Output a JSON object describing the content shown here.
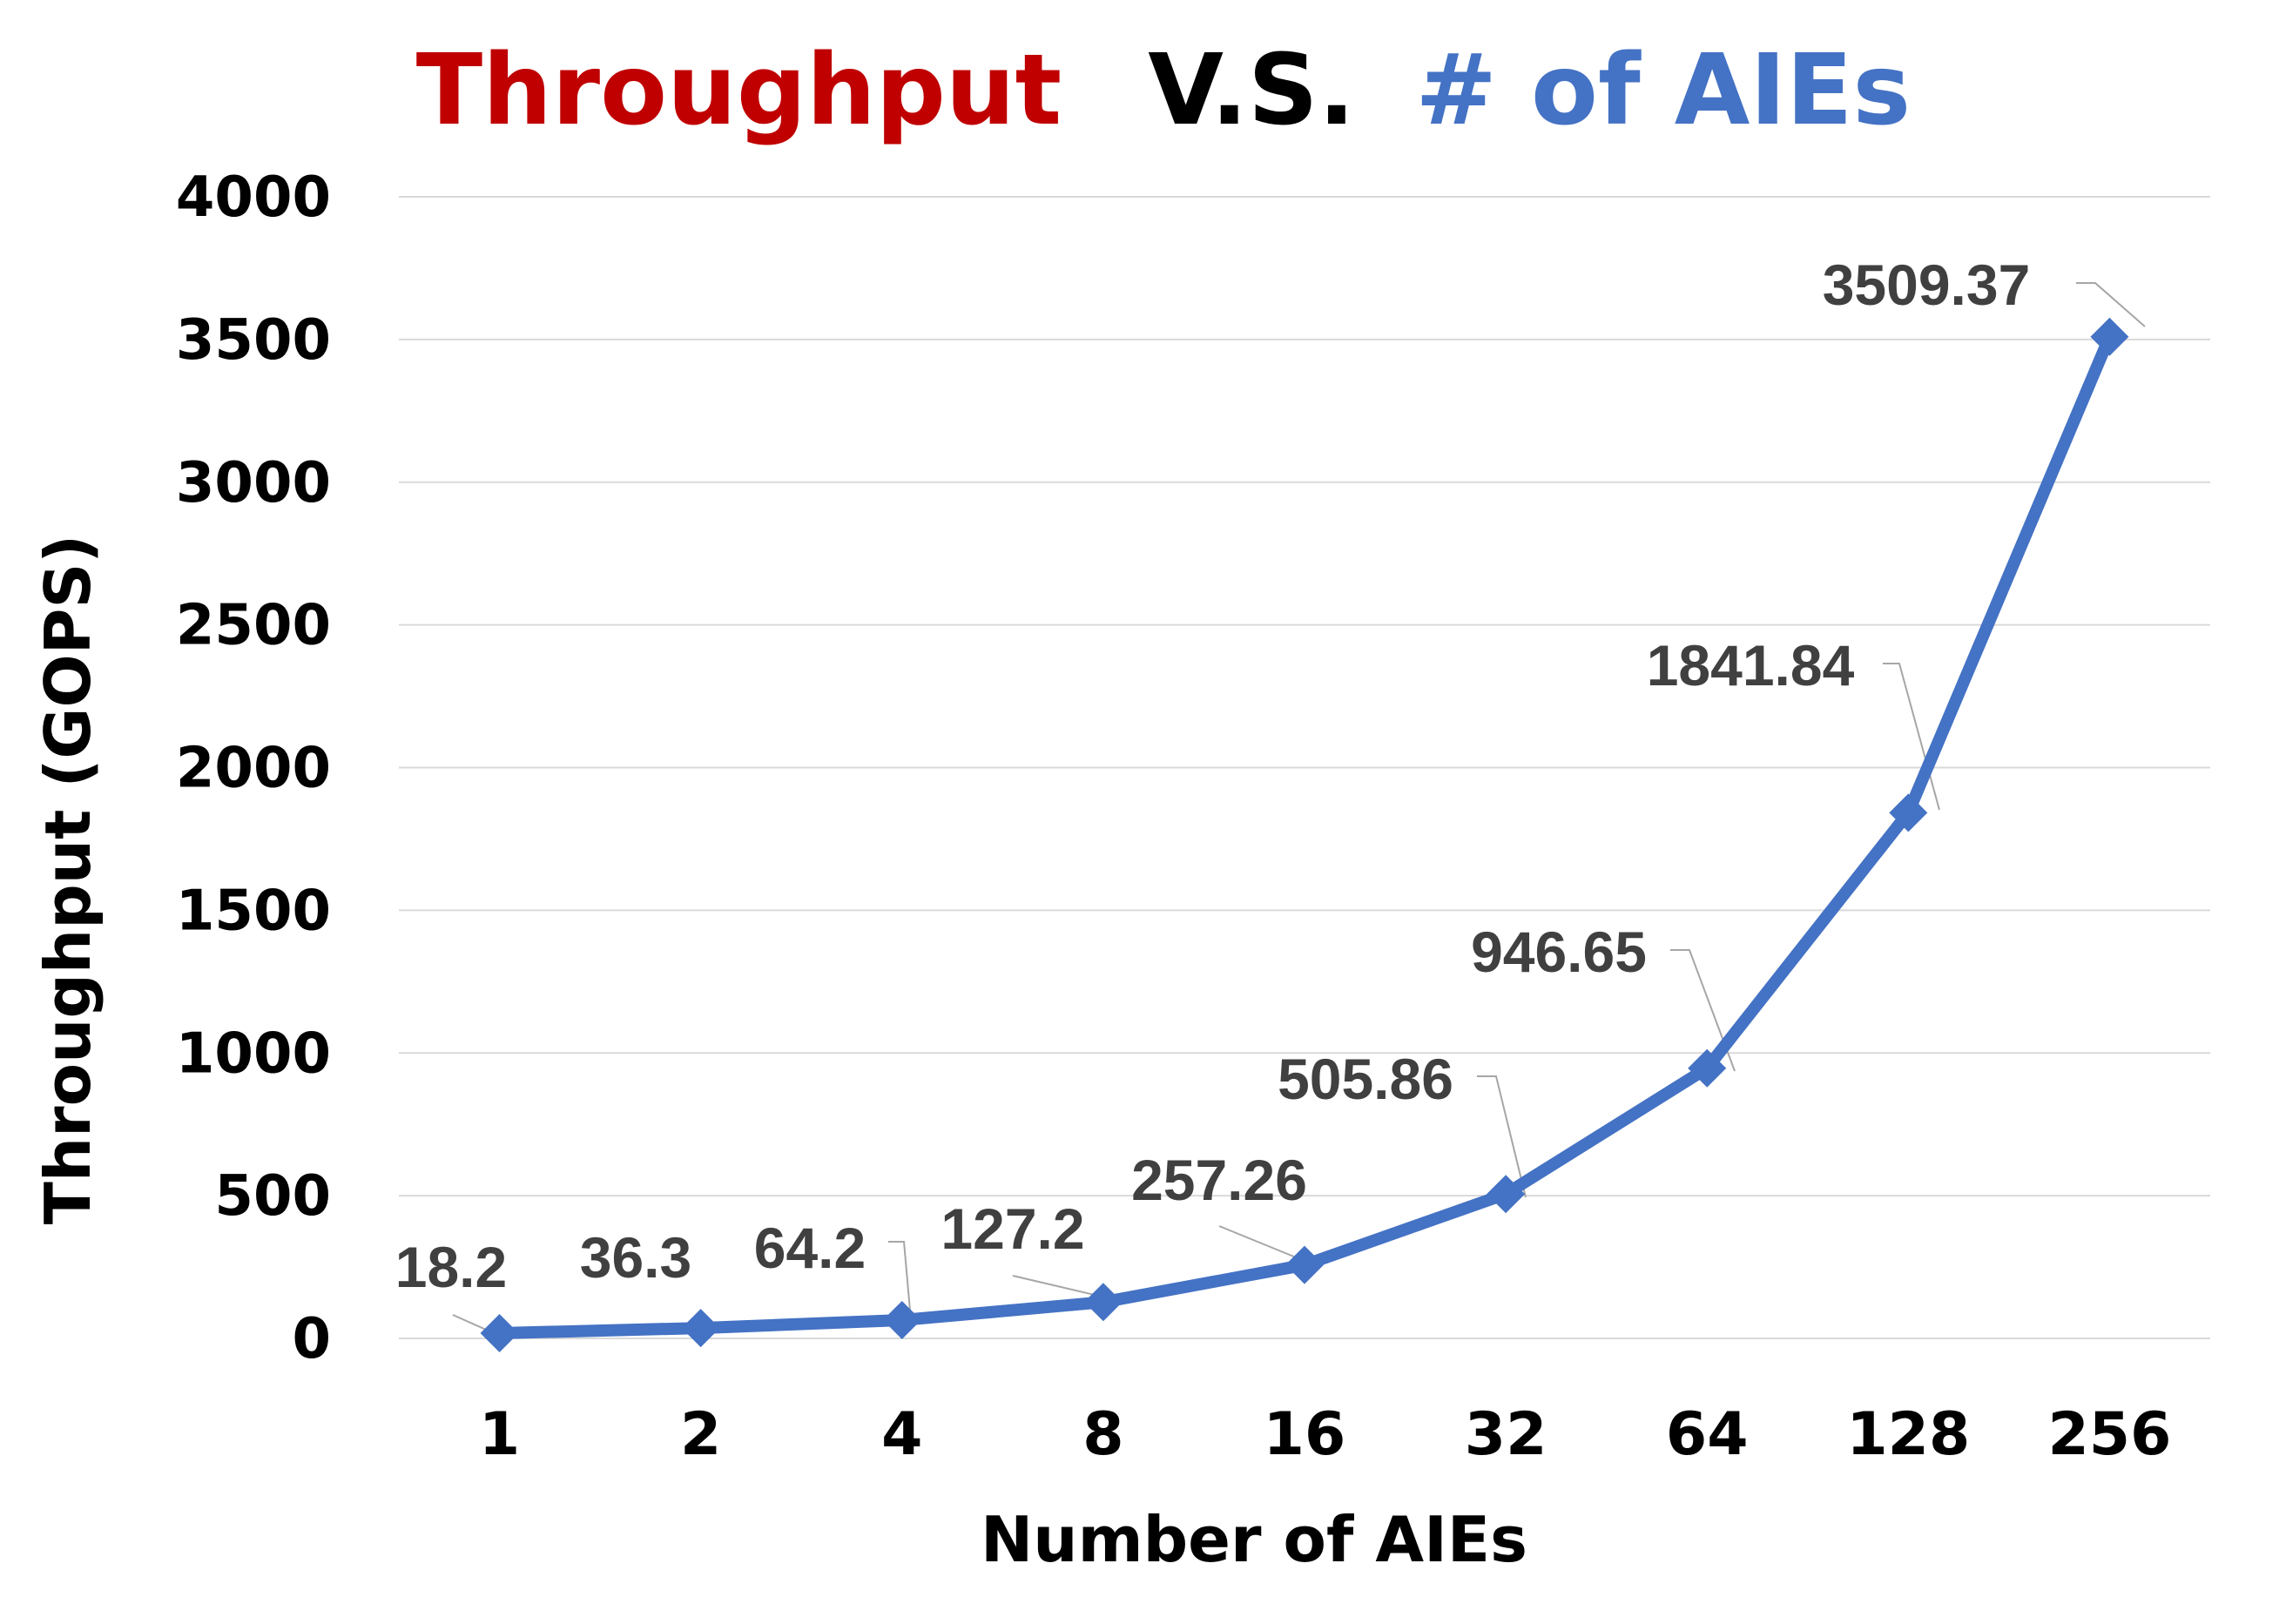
{
  "chart_data": {
    "type": "line",
    "title": {
      "part1": "Throughput",
      "part2": "V.S.",
      "part3": "# of AIEs"
    },
    "xlabel": "Number of AIEs",
    "ylabel": "Throughput (GOPS)",
    "categories": [
      "1",
      "2",
      "4",
      "8",
      "16",
      "32",
      "64",
      "128",
      "256"
    ],
    "series": [
      {
        "values": [
          18.2,
          36.3,
          64.2,
          127.2,
          257.26,
          505.86,
          946.65,
          1841.84,
          3509.37
        ],
        "labels": [
          "18.2",
          "36.3",
          "64.2",
          "127.2",
          "257.26",
          "505.86",
          "946.65",
          "1841.84",
          "3509.37"
        ]
      }
    ],
    "ylim": [
      0,
      4000
    ],
    "yticks": [
      "0",
      "500",
      "1000",
      "1500",
      "2000",
      "2500",
      "3000",
      "3500",
      "4000"
    ],
    "grid": true,
    "legend": "none",
    "marker": "diamond"
  },
  "colors": {
    "title_part1": "#c00000",
    "title_part2": "#000000",
    "title_part3": "#4472c4",
    "series": "#4472c4",
    "grid": "#d9d9d9",
    "label": "#404040"
  }
}
